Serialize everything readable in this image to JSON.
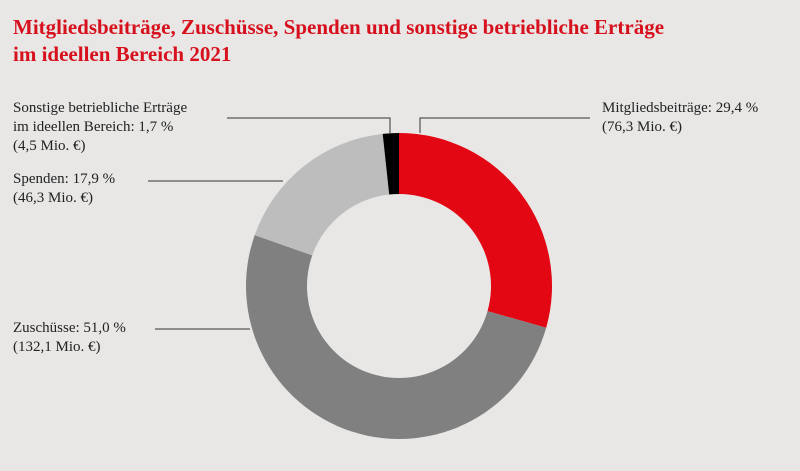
{
  "chart_data": {
    "type": "pie",
    "variant": "donut",
    "title_lines": [
      "Mitgliedsbeiträge, Zuschüsse, Spenden und sonstige betriebliche Erträge",
      "im ideellen Bereich 2021"
    ],
    "slices": [
      {
        "name": "Mitgliedsbeiträge",
        "percent": 29.4,
        "value_label": "Mitgliedsbeiträge: 29,4 %",
        "amount_label": "(76,3 Mio. €)",
        "color": "#e30613"
      },
      {
        "name": "Zuschüsse",
        "percent": 51.0,
        "value_label": "Zuschüsse: 51,0 %",
        "amount_label": "(132,1 Mio. €)",
        "color": "#808080"
      },
      {
        "name": "Spenden",
        "percent": 17.9,
        "value_label": "Spenden: 17,9 %",
        "amount_label": "(46,3 Mio. €)",
        "color": "#bdbdbd"
      },
      {
        "name": "Sonstige betriebliche Erträge im ideellen Bereich",
        "percent": 1.7,
        "value_label_lines": [
          "Sonstige betriebliche Erträge",
          "im ideellen Bereich: 1,7 %"
        ],
        "amount_label": "(4,5 Mio. €)",
        "color": "#000000"
      }
    ]
  },
  "colors": {
    "title": "#d7101d",
    "background": "#e8e7e6",
    "leader_line": "#333333"
  }
}
